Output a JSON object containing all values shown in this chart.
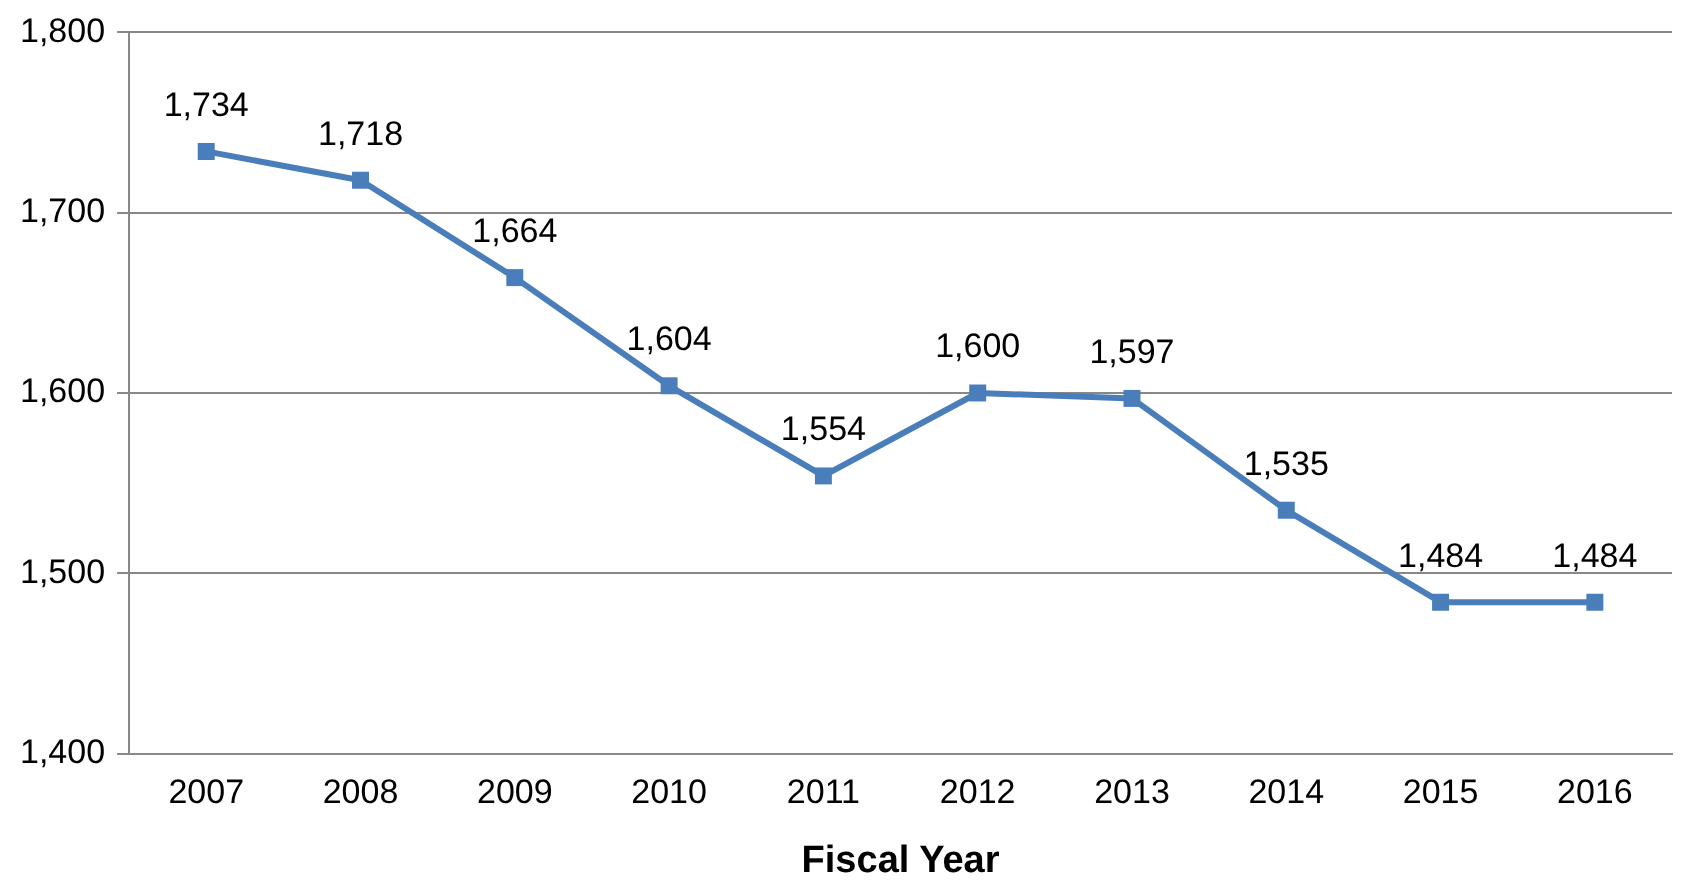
{
  "chart_data": {
    "type": "line",
    "xlabel": "Fiscal Year",
    "categories": [
      "2007",
      "2008",
      "2009",
      "2010",
      "2011",
      "2012",
      "2013",
      "2014",
      "2015",
      "2016"
    ],
    "series": [
      {
        "color": "#4a7ebb",
        "values": [
          1734,
          1718,
          1664,
          1604,
          1554,
          1600,
          1597,
          1535,
          1484,
          1484
        ],
        "value_labels": [
          "1,734",
          "1,718",
          "1,664",
          "1,604",
          "1,554",
          "1,600",
          "1,597",
          "1,535",
          "1,484",
          "1,484"
        ]
      }
    ],
    "ylim": [
      1400,
      1800
    ],
    "yticks": [
      {
        "value": 1400,
        "label": "1,400"
      },
      {
        "value": 1500,
        "label": "1,500"
      },
      {
        "value": 1600,
        "label": "1,600"
      },
      {
        "value": 1700,
        "label": "1,700"
      },
      {
        "value": 1800,
        "label": "1,800"
      }
    ],
    "grid": "y",
    "legend": false,
    "marker": "square",
    "line_style": "solid"
  }
}
